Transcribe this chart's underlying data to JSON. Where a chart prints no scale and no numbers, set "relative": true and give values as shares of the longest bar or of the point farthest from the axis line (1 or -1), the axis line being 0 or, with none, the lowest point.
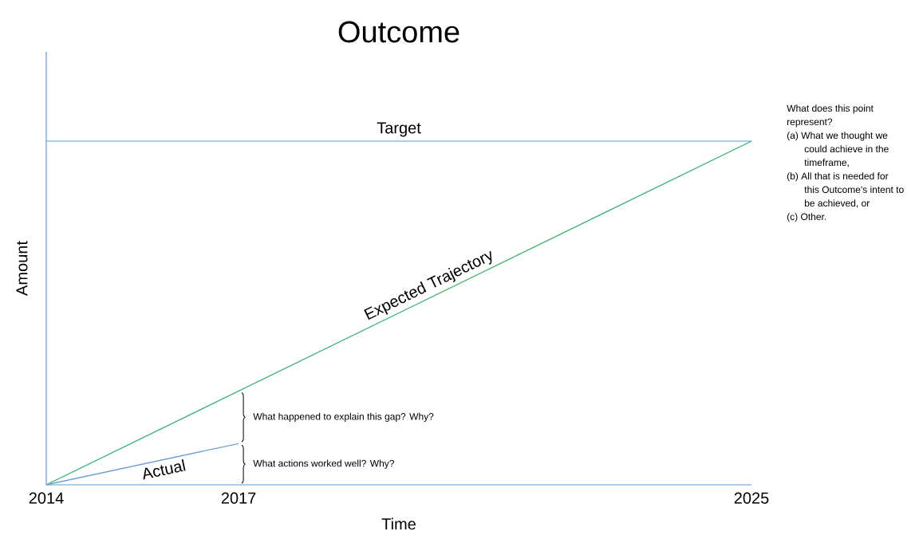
{
  "chart_data": {
    "type": "line",
    "title": "Outcome",
    "xlabel": "Time",
    "ylabel": "Amount",
    "relative": true,
    "xlim": [
      2014,
      2025
    ],
    "xticks": [
      2014,
      2017,
      2025
    ],
    "series": [
      {
        "name": "Expected Trajectory",
        "color": "#2fb36b",
        "x": [
          2014,
          2025
        ],
        "values": [
          0,
          1
        ]
      },
      {
        "name": "Actual",
        "color": "#6f9fd8",
        "x": [
          2014,
          2017
        ],
        "values": [
          0,
          0.12
        ]
      }
    ],
    "ref_lines": [
      {
        "axis": "y",
        "value": 1,
        "label": "Target",
        "color": "#5b9bd5"
      }
    ],
    "annotations": [
      "What happened to explain this gap? Why?",
      "What actions worked well? Why?",
      "What does this point represent?",
      "(a) What we thought we could achieve in the timeframe,",
      "(b) All that is needed for this Outcome's intent to be achieved, or",
      "(c) Other."
    ]
  }
}
